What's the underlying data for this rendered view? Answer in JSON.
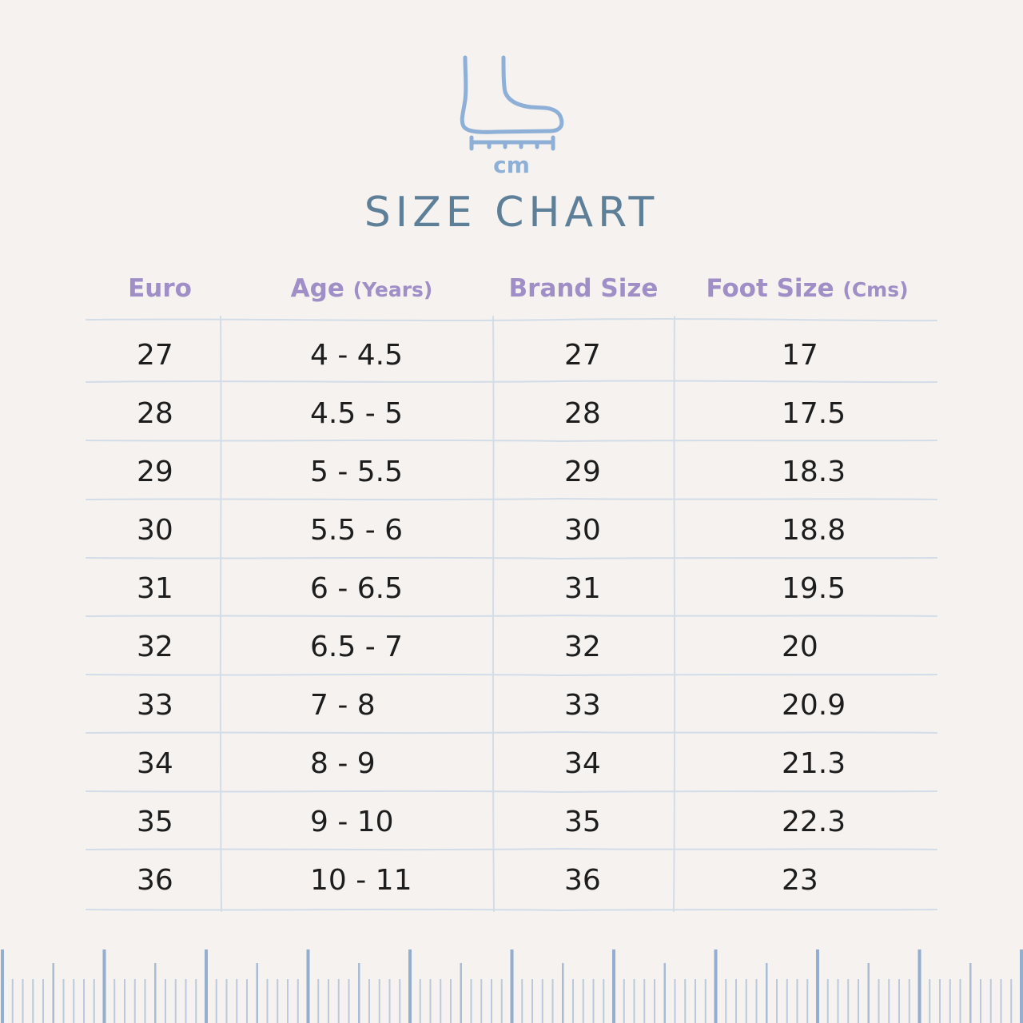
{
  "cm_label": "cm",
  "title": "SIZE CHART",
  "headers": {
    "euro": "Euro",
    "age": "Age",
    "age_unit": "(Years)",
    "brand": "Brand Size",
    "foot": "Foot Size",
    "foot_unit": "(Cms)"
  },
  "rows": [
    {
      "euro": "27",
      "age": "4 - 4.5",
      "brand": "27",
      "foot": "17"
    },
    {
      "euro": "28",
      "age": "4.5 - 5",
      "brand": "28",
      "foot": "17.5"
    },
    {
      "euro": "29",
      "age": "5 - 5.5",
      "brand": "29",
      "foot": "18.3"
    },
    {
      "euro": "30",
      "age": "5.5 - 6",
      "brand": "30",
      "foot": "18.8"
    },
    {
      "euro": "31",
      "age": "6 - 6.5",
      "brand": "31",
      "foot": "19.5"
    },
    {
      "euro": "32",
      "age": "6.5 - 7",
      "brand": "32",
      "foot": "20"
    },
    {
      "euro": "33",
      "age": "7 - 8",
      "brand": "33",
      "foot": "20.9"
    },
    {
      "euro": "34",
      "age": "8 - 9",
      "brand": "34",
      "foot": "21.3"
    },
    {
      "euro": "35",
      "age": "9 - 10",
      "brand": "35",
      "foot": "22.3"
    },
    {
      "euro": "36",
      "age": "10 - 11",
      "brand": "36",
      "foot": "23"
    }
  ],
  "icons": {
    "logo": "foot-measure-icon",
    "ruler": "ruler-scale-icon"
  },
  "colors": {
    "background": "#f5f2f0",
    "title": "#5d7f98",
    "header": "#a08ec6",
    "icon": "#8fb0d6",
    "gridline": "#d3dde8",
    "text": "#1d1d1d"
  }
}
